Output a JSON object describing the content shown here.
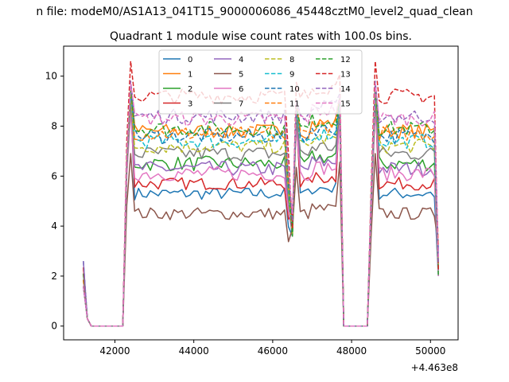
{
  "suptitle": "n file: modeM0/AS1A13_041T15_9000006086_45448cztM0_level2_quad_clean",
  "chart_data": {
    "type": "line",
    "title": "Quadrant 1 module wise count rates with 100.0s bins.",
    "xlabel": "",
    "ylabel": "",
    "x_offset_label": "+4.463e8",
    "xlim": [
      40700,
      50700
    ],
    "ylim": [
      -0.55,
      11.2
    ],
    "xticks": [
      42000,
      44000,
      46000,
      48000,
      50000
    ],
    "yticks": [
      0,
      2,
      4,
      6,
      8,
      10
    ],
    "grid": false,
    "legend_position": "upper-center",
    "segments": [
      {
        "start": 41200,
        "end": 41350
      },
      {
        "start": 42300,
        "end": 47700
      },
      {
        "start": 48500,
        "end": 50200
      }
    ],
    "zero_gaps": [
      [
        41400,
        42200
      ],
      [
        47800,
        48400
      ]
    ],
    "x_step": 100,
    "series": [
      {
        "name": "0",
        "color": "#1f77b4",
        "dash": "solid",
        "level": 5.3,
        "spike": 9.3,
        "noise": 0.25
      },
      {
        "name": "1",
        "color": "#ff7f0e",
        "dash": "solid",
        "level": 7.8,
        "spike": 9.6,
        "noise": 0.3
      },
      {
        "name": "2",
        "color": "#2ca02c",
        "dash": "solid",
        "level": 6.5,
        "spike": 9.2,
        "noise": 0.3
      },
      {
        "name": "3",
        "color": "#d62728",
        "dash": "solid",
        "level": 5.7,
        "spike": 9.0,
        "noise": 0.25
      },
      {
        "name": "4",
        "color": "#9467bd",
        "dash": "solid",
        "level": 6.3,
        "spike": 9.1,
        "noise": 0.3
      },
      {
        "name": "5",
        "color": "#8c564b",
        "dash": "solid",
        "level": 4.5,
        "spike": 6.9,
        "noise": 0.25
      },
      {
        "name": "6",
        "color": "#e377c2",
        "dash": "solid",
        "level": 6.1,
        "spike": 8.6,
        "noise": 0.3
      },
      {
        "name": "7",
        "color": "#7f7f7f",
        "dash": "solid",
        "level": 6.9,
        "spike": 9.0,
        "noise": 0.3
      },
      {
        "name": "8",
        "color": "#bcbd22",
        "dash": "dashed",
        "level": 7.2,
        "spike": 9.3,
        "noise": 0.3
      },
      {
        "name": "9",
        "color": "#17becf",
        "dash": "dashed",
        "level": 7.4,
        "spike": 9.4,
        "noise": 0.3
      },
      {
        "name": "10",
        "color": "#1f77b4",
        "dash": "dashed",
        "level": 7.6,
        "spike": 9.5,
        "noise": 0.3
      },
      {
        "name": "11",
        "color": "#ff7f0e",
        "dash": "dashed",
        "level": 7.7,
        "spike": 9.6,
        "noise": 0.3
      },
      {
        "name": "12",
        "color": "#2ca02c",
        "dash": "dashed",
        "level": 7.9,
        "spike": 9.6,
        "noise": 0.3
      },
      {
        "name": "13",
        "color": "#d62728",
        "dash": "dashed",
        "level": 9.2,
        "spike": 10.6,
        "noise": 0.3
      },
      {
        "name": "14",
        "color": "#9467bd",
        "dash": "dashed",
        "level": 8.4,
        "spike": 9.8,
        "noise": 0.3
      },
      {
        "name": "15",
        "color": "#e377c2",
        "dash": "dashed",
        "level": 8.3,
        "spike": 9.7,
        "noise": 0.3
      }
    ]
  }
}
